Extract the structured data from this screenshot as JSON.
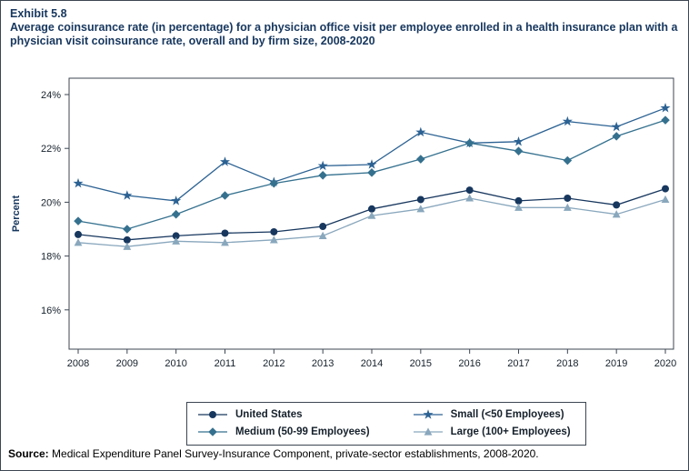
{
  "exhibit": {
    "label": "Exhibit 5.8",
    "title": "Average coinsurance rate (in percentage) for a physician office visit per employee enrolled in a health insurance plan with a physician visit coinsurance rate, overall and by firm size, 2008-2020"
  },
  "source": {
    "label": "Source:",
    "text": " Medical Expenditure Panel Survey-Insurance Component, private-sector establishments, 2008-2020."
  },
  "chart_data": {
    "type": "line",
    "title": "Average coinsurance rate (in percentage) for a physician office visit per employee enrolled in a health insurance plan with a physician visit coinsurance rate, overall and by firm size, 2008-2020",
    "xlabel": "",
    "ylabel": "Percent",
    "x": [
      2008,
      2009,
      2010,
      2011,
      2012,
      2013,
      2014,
      2015,
      2016,
      2017,
      2018,
      2019,
      2020
    ],
    "ylim": [
      14.5,
      24.6
    ],
    "yticks": [
      16,
      18,
      20,
      22,
      24
    ],
    "ytick_labels": [
      "16%",
      "18%",
      "20%",
      "22%",
      "24%"
    ],
    "grid": false,
    "legend_position": "bottom",
    "frame_color": "#3c4652",
    "series": [
      {
        "name": "United States",
        "marker": "circle",
        "color": "#17375e",
        "values": [
          18.8,
          18.6,
          18.75,
          18.85,
          18.9,
          19.1,
          19.75,
          20.1,
          20.45,
          20.05,
          20.15,
          19.9,
          20.5
        ]
      },
      {
        "name": "Small (<50 Employees)",
        "marker": "star",
        "color": "#2c6293",
        "values": [
          20.7,
          20.25,
          20.05,
          21.5,
          20.75,
          21.35,
          21.4,
          22.6,
          22.2,
          22.25,
          23.0,
          22.8,
          23.5
        ]
      },
      {
        "name": "Medium (50-99 Employees)",
        "marker": "diamond",
        "color": "#35718f",
        "values": [
          19.3,
          19.0,
          19.55,
          20.25,
          20.7,
          21.0,
          21.1,
          21.6,
          22.2,
          21.9,
          21.55,
          22.45,
          23.05
        ]
      },
      {
        "name": "Large (100+ Employees)",
        "marker": "triangle",
        "color": "#89a7bd",
        "values": [
          18.5,
          18.35,
          18.55,
          18.5,
          18.6,
          18.75,
          19.5,
          19.75,
          20.15,
          19.8,
          19.8,
          19.55,
          20.1
        ]
      }
    ]
  }
}
